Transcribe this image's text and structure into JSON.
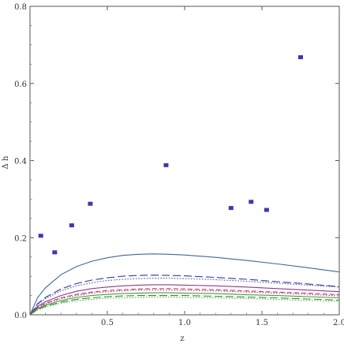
{
  "chart_data": {
    "type": "scatter",
    "xlabel": "z",
    "ylabel": "Δ h",
    "xlim": [
      0,
      2.0
    ],
    "ylim": [
      0,
      0.8
    ],
    "xticks": [
      "0.5",
      "1.0",
      "1.5",
      "2.0"
    ],
    "yticks": [
      "0.0",
      "0.2",
      "0.4",
      "0.6",
      "0.8"
    ],
    "grid": false,
    "legend": "none",
    "points": {
      "color": "#3a3ab0",
      "x": [
        0.07,
        0.16,
        0.27,
        0.39,
        0.88,
        1.3,
        1.43,
        1.53,
        1.75
      ],
      "y": [
        0.205,
        0.162,
        0.232,
        0.288,
        0.388,
        0.277,
        0.293,
        0.272,
        0.668
      ]
    },
    "curves": [
      {
        "color": "#3c6a99",
        "style": "solid",
        "x": [
          0,
          0.05,
          0.1,
          0.2,
          0.3,
          0.4,
          0.5,
          0.6,
          0.7,
          0.8,
          0.9,
          1.0,
          1.2,
          1.4,
          1.6,
          1.8,
          2.0
        ],
        "y": [
          0,
          0.045,
          0.07,
          0.104,
          0.125,
          0.139,
          0.148,
          0.154,
          0.157,
          0.158,
          0.157,
          0.155,
          0.149,
          0.141,
          0.132,
          0.122,
          0.111
        ]
      },
      {
        "color": "#2e3f99",
        "style": "longdash",
        "x": [
          0,
          0.05,
          0.1,
          0.2,
          0.3,
          0.4,
          0.5,
          0.6,
          0.7,
          0.8,
          0.9,
          1.0,
          1.2,
          1.4,
          1.6,
          1.8,
          2.0
        ],
        "y": [
          0,
          0.029,
          0.045,
          0.067,
          0.081,
          0.09,
          0.096,
          0.1,
          0.102,
          0.103,
          0.102,
          0.101,
          0.097,
          0.092,
          0.086,
          0.08,
          0.073
        ]
      },
      {
        "color": "#4a4ab0",
        "style": "dotted",
        "x": [
          0,
          0.05,
          0.1,
          0.2,
          0.3,
          0.4,
          0.5,
          0.6,
          0.7,
          0.8,
          0.9,
          1.0,
          1.2,
          1.4,
          1.6,
          1.8,
          2.0
        ],
        "y": [
          0,
          0.027,
          0.042,
          0.062,
          0.075,
          0.083,
          0.089,
          0.092,
          0.094,
          0.095,
          0.095,
          0.094,
          0.091,
          0.087,
          0.082,
          0.077,
          0.072
        ]
      },
      {
        "color": "#8a3c88",
        "style": "solid",
        "x": [
          0,
          0.05,
          0.1,
          0.2,
          0.3,
          0.4,
          0.5,
          0.6,
          0.7,
          0.8,
          0.9,
          1.0,
          1.2,
          1.4,
          1.6,
          1.8,
          2.0
        ],
        "y": [
          0,
          0.022,
          0.034,
          0.05,
          0.061,
          0.068,
          0.072,
          0.075,
          0.077,
          0.078,
          0.078,
          0.077,
          0.075,
          0.072,
          0.068,
          0.064,
          0.06
        ]
      },
      {
        "color": "#c0395f",
        "style": "dashed",
        "x": [
          0,
          0.05,
          0.1,
          0.2,
          0.3,
          0.4,
          0.5,
          0.6,
          0.7,
          0.8,
          0.9,
          1.0,
          1.2,
          1.4,
          1.6,
          1.8,
          2.0
        ],
        "y": [
          0,
          0.019,
          0.03,
          0.044,
          0.053,
          0.059,
          0.063,
          0.065,
          0.067,
          0.068,
          0.068,
          0.067,
          0.065,
          0.062,
          0.059,
          0.056,
          0.052
        ]
      },
      {
        "color": "#a83aa0",
        "style": "dotted",
        "x": [
          0,
          0.05,
          0.1,
          0.2,
          0.3,
          0.4,
          0.5,
          0.6,
          0.7,
          0.8,
          0.9,
          1.0,
          1.2,
          1.4,
          1.6,
          1.8,
          2.0
        ],
        "y": [
          0,
          0.018,
          0.028,
          0.042,
          0.05,
          0.056,
          0.06,
          0.062,
          0.064,
          0.064,
          0.064,
          0.063,
          0.062,
          0.059,
          0.056,
          0.053,
          0.049
        ]
      },
      {
        "color": "#4a9a3a",
        "style": "solid",
        "x": [
          0,
          0.05,
          0.1,
          0.2,
          0.3,
          0.4,
          0.5,
          0.6,
          0.7,
          0.8,
          0.9,
          1.0,
          1.2,
          1.4,
          1.6,
          1.8,
          2.0
        ],
        "y": [
          0,
          0.016,
          0.025,
          0.037,
          0.045,
          0.05,
          0.053,
          0.055,
          0.056,
          0.057,
          0.057,
          0.056,
          0.055,
          0.052,
          0.05,
          0.047,
          0.044
        ]
      },
      {
        "color": "#2f8f2f",
        "style": "longdash",
        "x": [
          0,
          0.05,
          0.1,
          0.2,
          0.3,
          0.4,
          0.5,
          0.6,
          0.7,
          0.8,
          0.9,
          1.0,
          1.2,
          1.4,
          1.6,
          1.8,
          2.0
        ],
        "y": [
          0,
          0.014,
          0.022,
          0.033,
          0.04,
          0.044,
          0.047,
          0.049,
          0.05,
          0.05,
          0.05,
          0.05,
          0.048,
          0.046,
          0.044,
          0.041,
          0.038
        ]
      },
      {
        "color": "#5aa84a",
        "style": "dotted",
        "x": [
          0,
          0.05,
          0.1,
          0.2,
          0.3,
          0.4,
          0.5,
          0.6,
          0.7,
          0.8,
          0.9,
          1.0,
          1.2,
          1.4,
          1.6,
          1.8,
          2.0
        ],
        "y": [
          0,
          0.013,
          0.02,
          0.03,
          0.036,
          0.04,
          0.043,
          0.044,
          0.045,
          0.046,
          0.046,
          0.045,
          0.044,
          0.042,
          0.04,
          0.037,
          0.035
        ]
      }
    ]
  }
}
